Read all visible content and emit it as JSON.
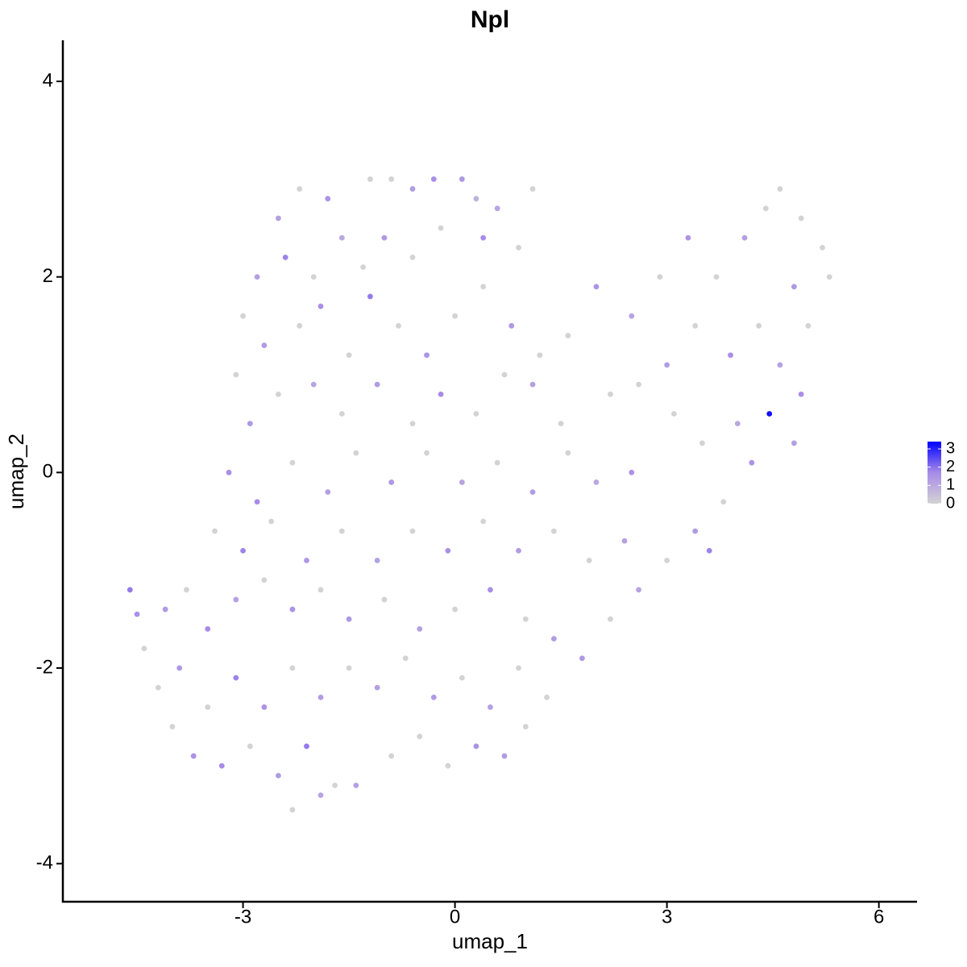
{
  "chart_data": {
    "type": "scatter",
    "title": "Npl",
    "x_label": "umap_1",
    "y_label": "umap_2",
    "xlim": [
      -5.55,
      6.54
    ],
    "ylim": [
      -4.39,
      4.42
    ],
    "xticks": [
      -3,
      0,
      3,
      6
    ],
    "yticks": [
      -4,
      -2,
      0,
      2,
      4
    ],
    "colors": [
      "#d3d3d3",
      "#a78be8",
      "#0000ff"
    ],
    "colorlim": [
      0,
      3.4
    ],
    "colorbar_ticks": [
      0,
      1,
      2,
      3
    ],
    "x": [
      -2.5,
      -2.2,
      -1.8,
      -1.2,
      -0.9,
      -0.6,
      -0.3,
      0.1,
      0.3,
      0.6,
      1.1,
      -2.8,
      -3.0,
      -2.4,
      -2.0,
      -1.6,
      -1.3,
      -1.0,
      -0.6,
      -0.2,
      0.4,
      0.9,
      -2.7,
      -2.2,
      -1.9,
      -1.5,
      -1.2,
      -0.8,
      -0.4,
      0.0,
      0.4,
      0.8,
      1.2,
      1.6,
      2.0,
      -3.1,
      -2.9,
      -2.5,
      -2.0,
      -1.6,
      -1.1,
      -0.6,
      -0.2,
      0.3,
      0.7,
      1.1,
      1.5,
      2.2,
      2.5,
      2.9,
      3.3,
      3.7,
      4.1,
      4.4,
      4.6,
      4.9,
      5.2,
      5.3,
      4.8,
      4.3,
      3.9,
      3.4,
      3.0,
      2.6,
      4.6,
      5.0,
      4.9,
      4.45,
      4.0,
      3.5,
      3.1,
      4.2,
      4.8,
      3.8,
      3.4,
      3.0,
      2.6,
      2.2,
      1.8,
      3.6,
      -3.2,
      -2.8,
      -2.3,
      -1.8,
      -1.4,
      -0.9,
      -0.4,
      0.1,
      0.6,
      1.1,
      1.6,
      2.0,
      2.5,
      -3.4,
      -3.0,
      -2.6,
      -2.1,
      -1.6,
      -1.1,
      -0.6,
      -0.1,
      0.4,
      0.9,
      1.4,
      1.9,
      2.4,
      -4.6,
      -4.5,
      -4.4,
      -4.1,
      -3.8,
      -3.5,
      -3.1,
      -2.7,
      -2.3,
      -1.9,
      -1.5,
      -1.0,
      -0.5,
      0.0,
      0.5,
      1.0,
      1.4,
      -4.2,
      -3.9,
      -3.5,
      -3.1,
      -2.7,
      -2.3,
      -1.9,
      -1.5,
      -1.1,
      -0.7,
      -0.3,
      0.1,
      0.5,
      0.9,
      1.3,
      -4.0,
      -3.7,
      -3.3,
      -2.9,
      -2.5,
      -2.1,
      -1.7,
      -1.4,
      -0.9,
      -0.5,
      -0.1,
      0.3,
      0.7,
      1.0,
      -2.3,
      -1.9
    ],
    "y": [
      2.6,
      2.9,
      2.8,
      3.0,
      3.0,
      2.9,
      3.0,
      3.0,
      2.8,
      2.7,
      2.9,
      2.0,
      1.6,
      2.2,
      2.0,
      2.4,
      2.1,
      2.4,
      2.2,
      2.5,
      2.4,
      2.3,
      1.3,
      1.5,
      1.7,
      1.2,
      1.8,
      1.5,
      1.2,
      1.6,
      1.9,
      1.5,
      1.2,
      1.4,
      1.9,
      1.0,
      0.5,
      0.8,
      0.9,
      0.6,
      0.9,
      0.5,
      0.8,
      0.6,
      1.0,
      0.9,
      0.5,
      0.8,
      1.6,
      2.0,
      2.4,
      2.0,
      2.4,
      2.7,
      2.9,
      2.6,
      2.3,
      2.0,
      1.9,
      1.5,
      1.2,
      1.5,
      1.1,
      0.9,
      1.1,
      1.5,
      0.8,
      0.6,
      0.5,
      0.3,
      0.6,
      0.1,
      0.3,
      -0.3,
      -0.6,
      -0.9,
      -1.2,
      -1.5,
      -1.9,
      -0.8,
      0.0,
      -0.3,
      0.1,
      -0.2,
      0.2,
      -0.1,
      0.2,
      -0.1,
      0.1,
      -0.2,
      0.2,
      -0.1,
      0.0,
      -0.6,
      -0.8,
      -0.5,
      -0.9,
      -0.6,
      -0.9,
      -0.6,
      -0.8,
      -0.5,
      -0.8,
      -0.6,
      -0.9,
      -0.7,
      -1.2,
      -1.45,
      -1.8,
      -1.4,
      -1.2,
      -1.6,
      -1.3,
      -1.1,
      -1.4,
      -1.2,
      -1.5,
      -1.3,
      -1.6,
      -1.4,
      -1.2,
      -1.5,
      -1.7,
      -2.2,
      -2.0,
      -2.4,
      -2.1,
      -2.4,
      -2.0,
      -2.3,
      -2.0,
      -2.2,
      -1.9,
      -2.3,
      -2.1,
      -2.4,
      -2.0,
      -2.3,
      -2.6,
      -2.9,
      -3.0,
      -2.8,
      -3.1,
      -2.8,
      -3.2,
      -3.2,
      -2.9,
      -2.7,
      -3.0,
      -2.8,
      -2.9,
      -2.6,
      -3.45,
      -3.3
    ],
    "values": [
      1.2,
      0,
      1.5,
      0,
      0,
      1.3,
      1.6,
      1.4,
      0.8,
      1.1,
      0,
      1.2,
      0,
      1.8,
      0,
      1.0,
      0,
      1.4,
      0,
      0,
      1.7,
      0,
      1.3,
      0,
      1.6,
      0,
      1.9,
      0,
      1.5,
      0,
      0,
      1.4,
      0,
      0,
      1.5,
      0,
      1.4,
      0,
      1.1,
      0,
      1.3,
      0,
      1.7,
      0,
      0,
      1.2,
      0,
      0,
      1.1,
      0,
      1.5,
      0,
      1.2,
      0,
      0,
      0,
      0,
      0,
      1.4,
      0,
      1.6,
      0,
      1.3,
      0,
      1.2,
      0,
      1.6,
      3.2,
      1.0,
      0,
      0,
      1.5,
      1.2,
      0,
      1.3,
      0,
      1.1,
      0,
      1.4,
      1.8,
      1.6,
      1.7,
      0,
      1.2,
      0,
      1.4,
      0,
      1.1,
      0,
      1.3,
      0,
      1.0,
      1.5,
      0,
      1.8,
      0,
      1.4,
      0,
      1.2,
      0,
      1.6,
      0,
      1.3,
      0,
      0,
      1.2,
      1.9,
      1.6,
      0,
      1.3,
      0,
      1.7,
      1.2,
      0,
      1.5,
      0,
      1.4,
      0,
      1.2,
      0,
      1.6,
      0,
      1.3,
      0,
      1.4,
      0,
      1.8,
      1.5,
      0,
      1.3,
      0,
      1.2,
      0,
      1.4,
      0,
      1.2,
      0,
      0,
      0,
      1.5,
      1.7,
      0,
      1.3,
      1.9,
      0,
      1.2,
      0,
      0,
      0,
      1.5,
      1.3,
      0,
      0,
      1.1
    ]
  }
}
